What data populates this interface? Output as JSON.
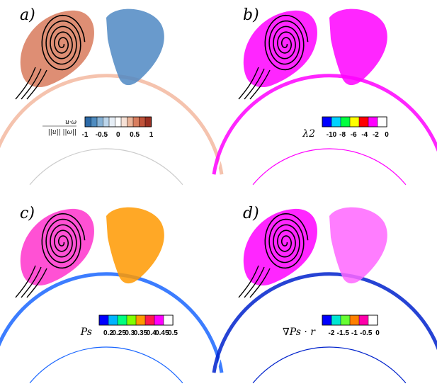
{
  "panels": [
    {
      "id": "a",
      "label": "a)",
      "colorbar": {
        "title_top": "u·ω",
        "title_bottom": "||u|| ||ω||",
        "ticks": [
          "-1",
          "-0.5",
          "0",
          "0.5",
          "1"
        ],
        "colors": [
          "#2c6aa8",
          "#4f8cc0",
          "#86b2d6",
          "#bcd5ea",
          "#e6eef6",
          "#ffffff",
          "#f6e1d6",
          "#eab499",
          "#d87e5f",
          "#c1533a",
          "#9b2f22"
        ]
      },
      "style": {
        "left": "#d87a5c",
        "right": "#4f88c3",
        "arc": "#f3b8a0"
      }
    },
    {
      "id": "b",
      "label": "b)",
      "colorbar": {
        "title": "λ2",
        "ticks": [
          "-10",
          "-8",
          "-6",
          "-4",
          "-2",
          "0"
        ],
        "colors": [
          "#0000ff",
          "#00d2ff",
          "#00ff40",
          "#ffff00",
          "#ff0000",
          "#ff00ff",
          "#ffffff"
        ]
      },
      "style": {
        "left": "#ff00ff",
        "right": "#ff00ff",
        "arc": "#ff00ff"
      }
    },
    {
      "id": "c",
      "label": "c)",
      "colorbar": {
        "title": "Ps",
        "ticks": [
          "0.2",
          "0.25",
          "0.3",
          "0.35",
          "0.4",
          "0.45",
          "0.5"
        ],
        "colors": [
          "#0000ff",
          "#00b4ff",
          "#00ff80",
          "#80ff00",
          "#ff9900",
          "#ff1a4d",
          "#ff00ff",
          "#ffffff"
        ]
      },
      "style": {
        "left": "#ff33cc",
        "right": "#ff9900",
        "arc": "#1a66ff"
      }
    },
    {
      "id": "d",
      "label": "d)",
      "colorbar": {
        "title": "∇Ps · r",
        "ticks": [
          "-2",
          "-1.5",
          "-1",
          "-0.5",
          "0"
        ],
        "colors": [
          "#0000ff",
          "#00e6d2",
          "#66ff33",
          "#ff8000",
          "#ff00aa",
          "#ffffff"
        ]
      },
      "style": {
        "left": "#ff00ff",
        "right": "#ff66ff",
        "arc": "#0022cc"
      }
    }
  ]
}
